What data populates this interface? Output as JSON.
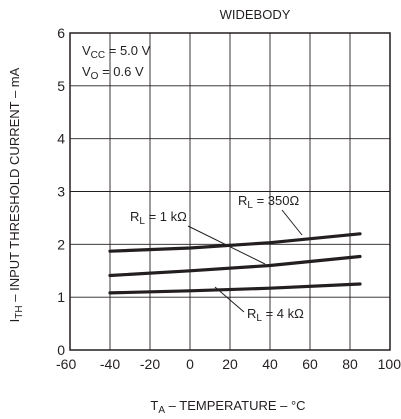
{
  "chart_data": {
    "type": "line",
    "title": "WIDEBODY",
    "xlabel": {
      "main": "T",
      "sub": "A",
      "rest": " – TEMPERATURE – °C"
    },
    "ylabel": {
      "main": "I",
      "sub": "TH",
      "rest": " – INPUT THRESHOLD CURRENT – mA"
    },
    "conditions": [
      {
        "main": "V",
        "sub": "CC",
        "rest": " = 5.0 V"
      },
      {
        "main": "V",
        "sub": "O",
        "rest": " = 0.6 V"
      }
    ],
    "xlim": [
      -60,
      100
    ],
    "ylim": [
      0,
      6
    ],
    "xticks": [
      "-60",
      "-40",
      "-20",
      "0",
      "20",
      "40",
      "60",
      "80",
      "100"
    ],
    "yticks": [
      "0",
      "1",
      "2",
      "3",
      "4",
      "5",
      "6"
    ],
    "grid": true,
    "series": [
      {
        "name": "R_L = 350Ω",
        "x": [
          -40,
          0,
          40,
          85
        ],
        "y": [
          1.87,
          1.93,
          2.03,
          2.2
        ]
      },
      {
        "name": "R_L = 1 kΩ",
        "x": [
          -40,
          0,
          40,
          85
        ],
        "y": [
          1.41,
          1.5,
          1.6,
          1.77
        ]
      },
      {
        "name": "R_L = 4 kΩ",
        "x": [
          -40,
          0,
          40,
          85
        ],
        "y": [
          1.08,
          1.12,
          1.17,
          1.25
        ]
      }
    ],
    "annotations": [
      {
        "main": "R",
        "sub": "L",
        "rest": " = 350Ω"
      },
      {
        "main": "R",
        "sub": "L",
        "rest": " = 1 kΩ"
      },
      {
        "main": "R",
        "sub": "L",
        "rest": " = 4 kΩ"
      }
    ]
  }
}
